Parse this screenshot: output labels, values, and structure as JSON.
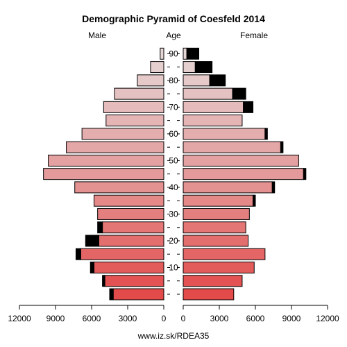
{
  "chart_data": {
    "type": "bar",
    "title": "Demographic Pyramid of Coesfeld 2014",
    "left_label": "Male",
    "center_label": "Age",
    "right_label": "Female",
    "source": "www.iz.sk/RDEA35",
    "age_ticks": [
      "10",
      "20",
      "30",
      "40",
      "50",
      "60",
      "70",
      "80",
      "90"
    ],
    "x_ticks_left": [
      "12000",
      "9000",
      "6000",
      "3000",
      "0"
    ],
    "x_ticks_right": [
      "0",
      "3000",
      "6000",
      "9000",
      "12000"
    ],
    "xlim": [
      0,
      12000
    ],
    "age_groups": [
      "0-4",
      "5-9",
      "10-14",
      "15-19",
      "20-24",
      "25-29",
      "30-34",
      "35-39",
      "40-44",
      "45-49",
      "50-54",
      "55-59",
      "60-64",
      "65-69",
      "70-74",
      "75-79",
      "80-84",
      "85-89",
      "90+"
    ],
    "series": [
      {
        "name": "Male",
        "values": [
          4200,
          4900,
          5800,
          6900,
          5400,
          5100,
          5500,
          5800,
          7400,
          10000,
          9600,
          8100,
          6800,
          4800,
          5000,
          4100,
          2200,
          1100,
          300
        ],
        "excess": [
          300,
          200,
          300,
          400,
          1100,
          400,
          0,
          0,
          0,
          0,
          0,
          0,
          0,
          0,
          0,
          0,
          0,
          0,
          0
        ]
      },
      {
        "name": "Female",
        "values": [
          4200,
          4900,
          5900,
          6800,
          5400,
          5200,
          5500,
          5800,
          7400,
          10000,
          9600,
          8100,
          6800,
          4900,
          5000,
          4100,
          2200,
          1000,
          300
        ],
        "excess": [
          0,
          0,
          0,
          0,
          0,
          0,
          0,
          200,
          200,
          200,
          0,
          200,
          200,
          0,
          800,
          1100,
          1300,
          1400,
          1000
        ]
      }
    ],
    "colors": {
      "young": "#e34a4a",
      "mid": "#e49a9a",
      "old": "#e6d6d6",
      "excess": "#000000",
      "bar_stroke": "#000000"
    }
  }
}
